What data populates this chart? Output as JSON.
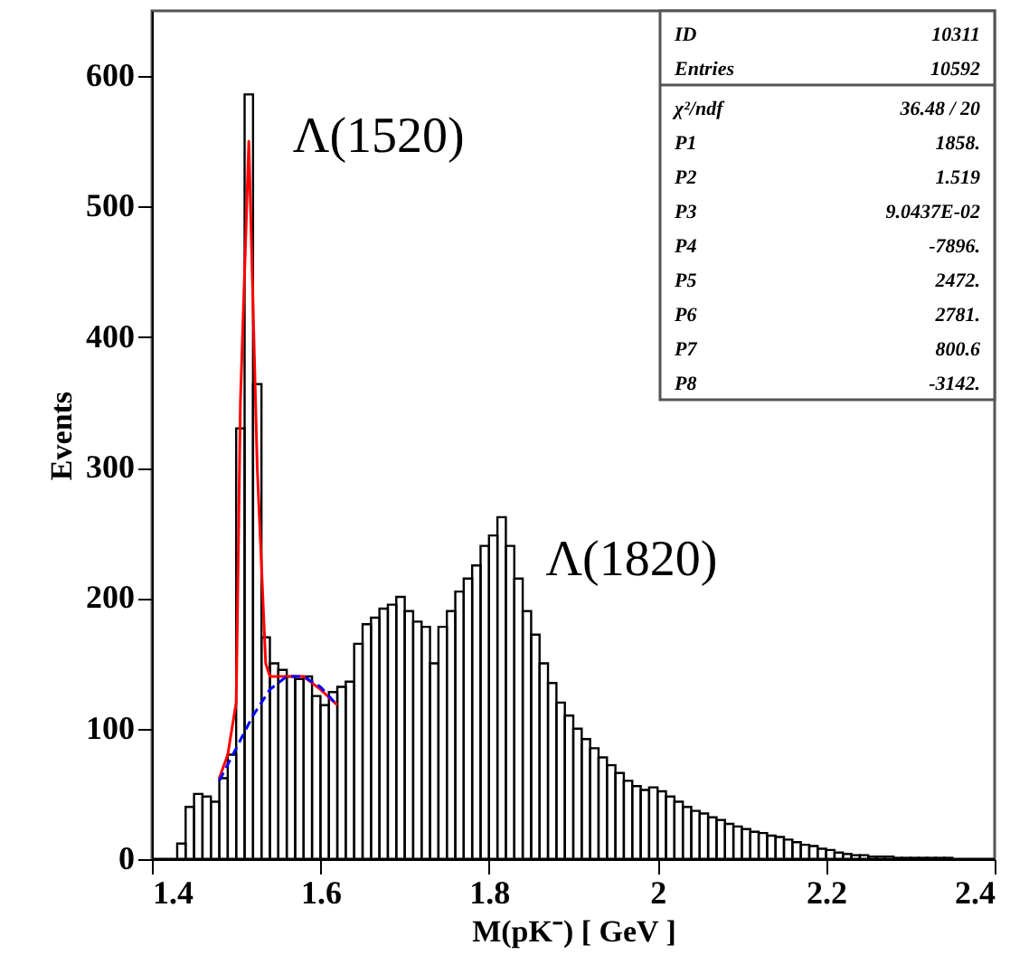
{
  "chart_data": {
    "type": "histogram",
    "xlabel": "M(pK⁻) [ GeV ]",
    "ylabel": "Events",
    "bins": [
      1.4,
      1.41,
      1.42,
      1.43,
      1.44,
      1.45,
      1.46,
      1.47,
      1.48,
      1.49,
      1.5,
      1.51,
      1.52,
      1.53,
      1.54,
      1.55,
      1.56,
      1.57,
      1.58,
      1.59,
      1.6,
      1.61,
      1.62,
      1.63,
      1.64,
      1.65,
      1.66,
      1.67,
      1.68,
      1.69,
      1.7,
      1.71,
      1.72,
      1.73,
      1.74,
      1.75,
      1.76,
      1.77,
      1.78,
      1.79,
      1.8,
      1.81,
      1.82,
      1.83,
      1.84,
      1.85,
      1.86,
      1.87,
      1.88,
      1.89,
      1.9,
      1.91,
      1.92,
      1.93,
      1.94,
      1.95,
      1.96,
      1.97,
      1.98,
      1.99,
      2.0,
      2.01,
      2.02,
      2.03,
      2.04,
      2.05,
      2.06,
      2.07,
      2.08,
      2.09,
      2.1,
      2.11,
      2.12,
      2.13,
      2.14,
      2.15,
      2.16,
      2.17,
      2.18,
      2.19,
      2.2,
      2.21,
      2.22,
      2.23,
      2.24,
      2.25,
      2.26,
      2.27,
      2.28,
      2.29,
      2.3,
      2.31,
      2.32,
      2.33,
      2.34,
      2.35,
      2.36,
      2.37,
      2.38,
      2.39,
      2.4
    ],
    "series": [
      {
        "color": "#000000",
        "values": [
          0,
          0,
          0,
          12,
          40,
          50,
          48,
          44,
          62,
          80,
          330,
          586,
          364,
          170,
          150,
          145,
          140,
          138,
          140,
          125,
          118,
          128,
          132,
          136,
          165,
          180,
          185,
          192,
          195,
          201,
          190,
          182,
          178,
          150,
          178,
          190,
          205,
          215,
          225,
          240,
          248,
          262,
          240,
          215,
          190,
          172,
          150,
          135,
          120,
          110,
          100,
          92,
          85,
          78,
          72,
          66,
          60,
          56,
          53,
          55,
          52,
          48,
          44,
          40,
          37,
          35,
          32,
          30,
          27,
          25,
          23,
          21,
          20,
          18,
          17,
          15,
          13,
          11,
          10,
          8,
          7,
          5,
          4,
          3,
          3,
          2,
          2,
          2,
          1,
          1,
          1,
          1,
          1,
          1,
          1,
          0,
          0,
          0,
          0,
          0
        ]
      },
      {
        "type": "line",
        "color": "#ff0000",
        "x": [
          1.48,
          1.49,
          1.5,
          1.505,
          1.515,
          1.525,
          1.535,
          1.54,
          1.56,
          1.58,
          1.6,
          1.62
        ],
        "values": [
          62,
          80,
          120,
          350,
          550,
          300,
          150,
          140,
          140,
          140,
          130,
          118
        ]
      },
      {
        "type": "line",
        "color": "#0000ff",
        "line_style": "dashed",
        "x": [
          1.48,
          1.5,
          1.52,
          1.54,
          1.56,
          1.58,
          1.6,
          1.62
        ],
        "values": [
          60,
          85,
          110,
          130,
          140,
          140,
          132,
          118
        ]
      }
    ],
    "xlim": [
      1.4,
      2.4
    ],
    "xticks": [
      1.4,
      1.6,
      1.8,
      2,
      2.2,
      2.4
    ],
    "ylim": [
      0,
      650
    ],
    "yticks": [
      0,
      100,
      200,
      300,
      400,
      500,
      600
    ],
    "grid": false,
    "annotations": [
      {
        "text": "Λ(1520)",
        "x": 1.52,
        "y": 586
      },
      {
        "text": "Λ(1820)",
        "x": 1.82,
        "y": 262
      },
      "ID 10311",
      "Entries 10592",
      "χ²/ndf 36.48 / 20",
      "P1 1858.",
      "P2 1.519",
      "P3 9.0437E-02",
      "P4 -7896.",
      "P5 2472.",
      "P6 2781.",
      "P7 800.6",
      "P8 -3142."
    ]
  }
}
